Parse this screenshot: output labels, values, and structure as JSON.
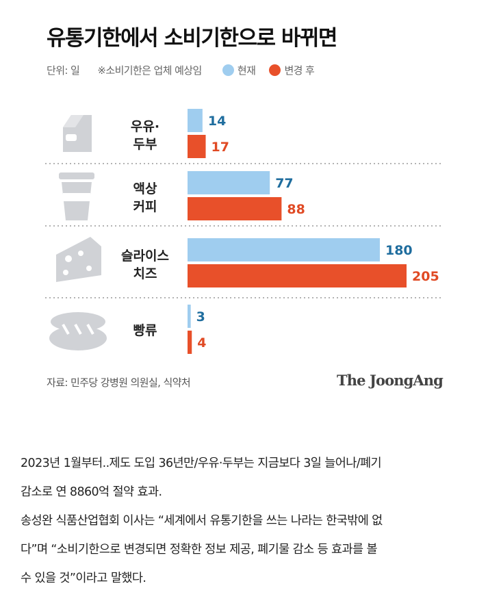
{
  "title": "유통기한에서 소비기한으로 바뀌면",
  "legend": {
    "unit": "단위: 일",
    "note": "※소비기한은 업체 예상임",
    "items": [
      {
        "label": "현재",
        "color": "#9fcdef"
      },
      {
        "label": "변경 후",
        "color": "#e8502a"
      }
    ]
  },
  "chart_data": {
    "type": "bar",
    "orientation": "horizontal",
    "title": "유통기한에서 소비기한으로 바뀌면",
    "categories": [
      {
        "line1": "우유·",
        "line2": "두부",
        "icon": "milk-carton-icon"
      },
      {
        "line1": "액상",
        "line2": "커피",
        "icon": "coffee-cup-icon"
      },
      {
        "line1": "슬라이스",
        "line2": "치즈",
        "icon": "cheese-icon"
      },
      {
        "line1": "빵류",
        "line2": "",
        "icon": "bread-icon"
      }
    ],
    "series": [
      {
        "name": "현재",
        "values": [
          14,
          77,
          180,
          3
        ],
        "color": "#9fcdef",
        "label_color": "#1f6d9e"
      },
      {
        "name": "변경 후",
        "values": [
          17,
          88,
          205,
          4
        ],
        "color": "#e8502a",
        "label_color": "#e04a24"
      }
    ],
    "xlim": [
      0,
      205
    ],
    "grid": false,
    "legend_position": "top"
  },
  "source": "자료: 민주당 강병원 의원실, 식약처",
  "brand": "The JoongAng",
  "body": {
    "lines": [
      "2023년 1월부터..제도 도입 36년만/우유·두부는 지금보다 3일 늘어나/폐기",
      "감소로 연 8860억 절약 효과.",
      "송성완 식품산업협회 이사는 “세계에서 유통기한을 쓰는 나라는 한국밖에 없",
      "다”며 “소비기한으로 변경되면 정확한 정보 제공, 폐기물 감소 등 효과를 볼",
      "수 있을 것”이라고 말했다."
    ]
  }
}
